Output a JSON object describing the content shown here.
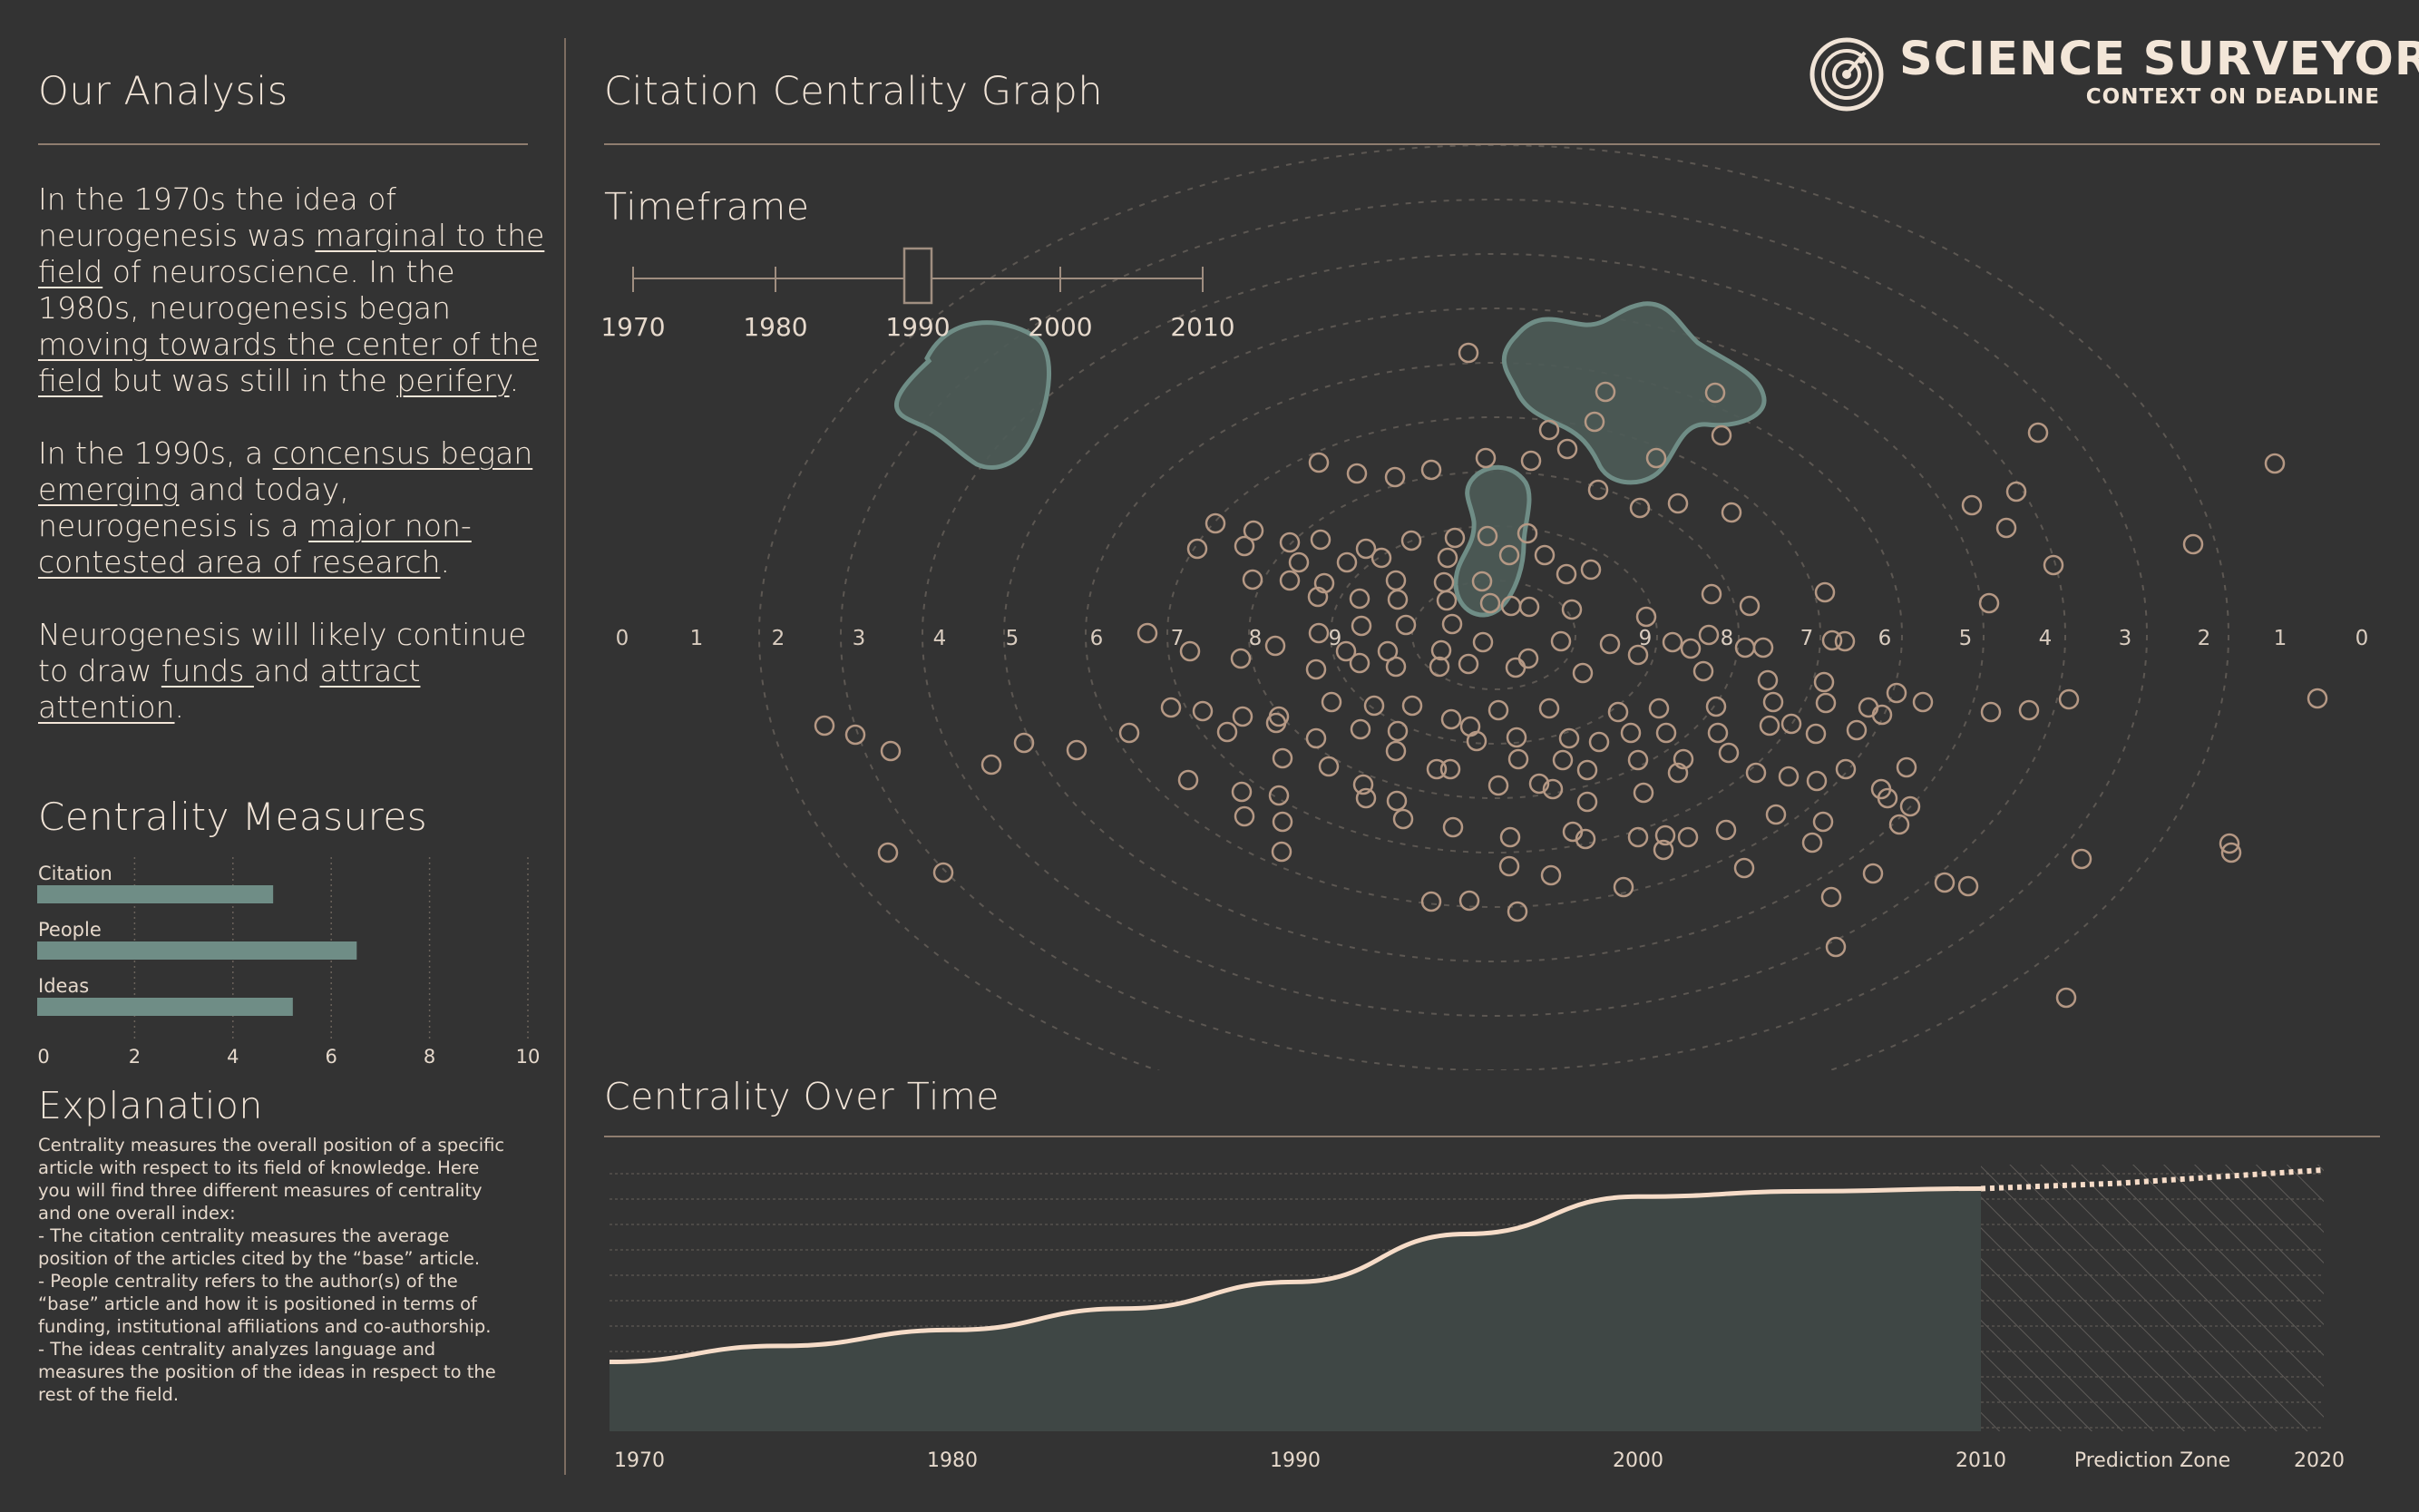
{
  "brand": {
    "title": "SCIENCE SURVEYOR",
    "subtitle": "CONTEXT ON DEADLINE",
    "logo_icon": "radar-icon"
  },
  "analysis": {
    "heading": "Our Analysis",
    "p1": {
      "t1": "In the 1970s the idea of neurogenesis was ",
      "l1": "marginal to the field",
      "t2": " of neuroscience. In the 1980s, neurogenesis began ",
      "l2": "moving towards the center of the field",
      "t3": " but was still in the ",
      "l3": "perifery",
      "t4": "."
    },
    "p2": {
      "t1": "In the 1990s, a ",
      "l1": "concensus began emerging",
      "t2": " and today, neurogenesis is a ",
      "l2": "major non-contested area of research",
      "t3": "."
    },
    "p3": {
      "t1": "Neurogenesis will likely continue to draw ",
      "l1": "funds ",
      "t2": "and ",
      "l2": "attract attention",
      "t3": "."
    }
  },
  "centrality": {
    "heading": "Centrality Measures",
    "max": 10,
    "ticks": [
      "0",
      "2",
      "4",
      "6",
      "8",
      "10"
    ],
    "bars": [
      {
        "label": "Citation",
        "value": 4.8
      },
      {
        "label": "People",
        "value": 6.5
      },
      {
        "label": "Ideas",
        "value": 5.2
      }
    ],
    "color": "#6f8d86"
  },
  "explanation": {
    "heading": "Explanation",
    "text": "Centrality measures the overall position of a specific\narticle with respect to its field of knowledge. Here\nyou will find three different measures of centrality\nand one overall index:\n- The citation centrality measures the average\nposition of the articles cited by the “base” article.\n- People centrality refers to the author(s) of the\n“base” article and how it is positioned in terms of\nfunding, institutional affiliations and co-authorship.\n- The ideas centrality analyzes language and\nmeasures the position of the ideas in respect to the\nrest of the field."
  },
  "graph": {
    "heading": "Citation Centrality Graph",
    "timeframe": {
      "heading": "Timeframe",
      "years": [
        "1970",
        "1980",
        "1990",
        "2000",
        "2010"
      ],
      "selected": "1990"
    },
    "ring_labels_left": [
      "0",
      "1",
      "2",
      "3",
      "4",
      "5",
      "6",
      "7",
      "8",
      "9"
    ],
    "ring_labels_right": [
      "9",
      "8",
      "7",
      "6",
      "5",
      "4",
      "3",
      "2",
      "1",
      "0"
    ],
    "cluster_color": "#6f8d86",
    "dot_color": "#b59884"
  },
  "over_time": {
    "heading": "Centrality Over Time",
    "x_labels": [
      "1970",
      "1980",
      "1990",
      "2000",
      "2010",
      "2020"
    ],
    "prediction_label": "Prediction Zone",
    "series": [
      {
        "x": 1970,
        "y": 0.26
      },
      {
        "x": 1975,
        "y": 0.32
      },
      {
        "x": 1980,
        "y": 0.38
      },
      {
        "x": 1985,
        "y": 0.46
      },
      {
        "x": 1990,
        "y": 0.56
      },
      {
        "x": 1995,
        "y": 0.74
      },
      {
        "x": 2000,
        "y": 0.88
      },
      {
        "x": 2005,
        "y": 0.9
      },
      {
        "x": 2010,
        "y": 0.91
      }
    ],
    "prediction": [
      {
        "x": 2010,
        "y": 0.91
      },
      {
        "x": 2014,
        "y": 0.93
      },
      {
        "x": 2020,
        "y": 0.98
      }
    ]
  }
}
